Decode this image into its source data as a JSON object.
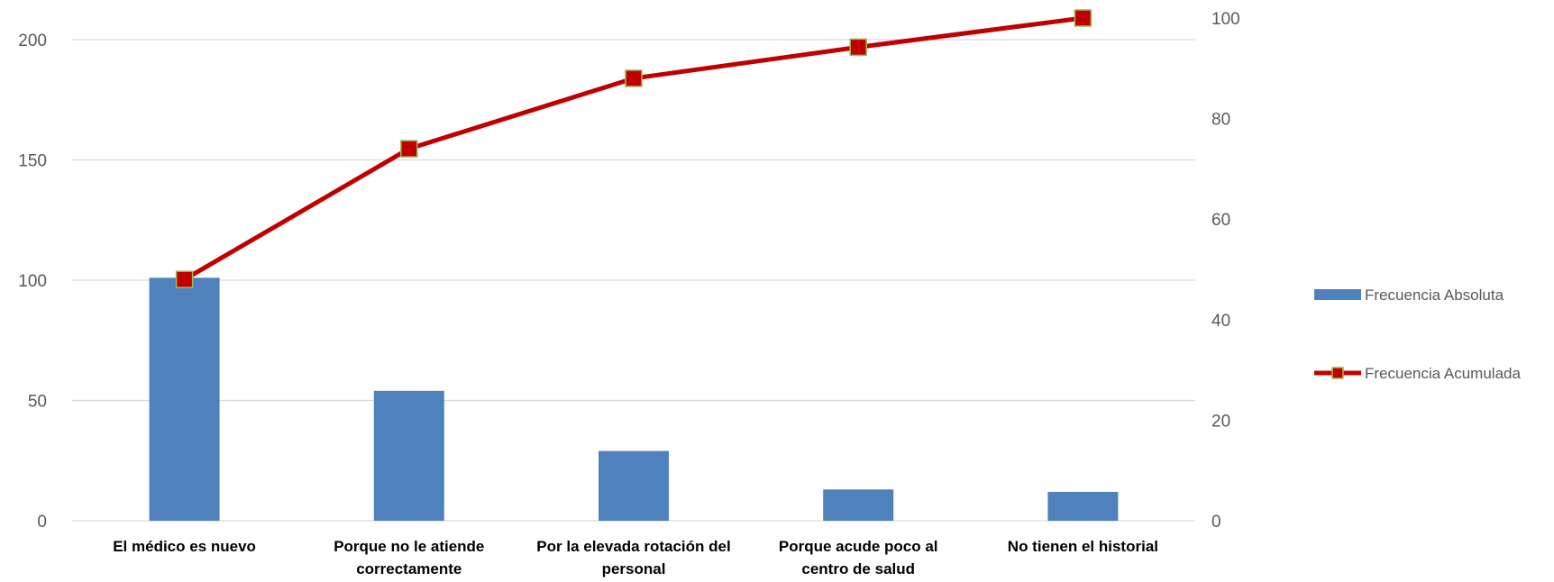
{
  "chart_data": {
    "type": "bar",
    "categories": [
      [
        "El médico es nuevo"
      ],
      [
        "Porque no le atiende",
        "correctamente"
      ],
      [
        "Por la elevada rotación del",
        "personal"
      ],
      [
        "Porque acude poco al",
        "centro de salud"
      ],
      [
        "No tienen el historial"
      ]
    ],
    "series": [
      {
        "name": "Frecuencia Absoluta",
        "type": "bar",
        "axis": "left",
        "color": "#4f81bd",
        "values": [
          101,
          54,
          29,
          13,
          12
        ]
      },
      {
        "name": "Frecuencia Acumulada",
        "type": "line",
        "axis": "right",
        "color": "#c00000",
        "marker_color": "#c00000",
        "marker_border": "#9bbb59",
        "values": [
          48,
          74,
          88,
          94.2,
          100
        ]
      }
    ],
    "y_left": {
      "min": 0,
      "max": 200,
      "ticks": [
        0,
        50,
        100,
        150,
        200
      ]
    },
    "y_right": {
      "min": 0,
      "max": 100,
      "ticks": [
        0,
        20,
        40,
        60,
        80,
        100
      ]
    },
    "grid": true,
    "legend_position": "right"
  }
}
